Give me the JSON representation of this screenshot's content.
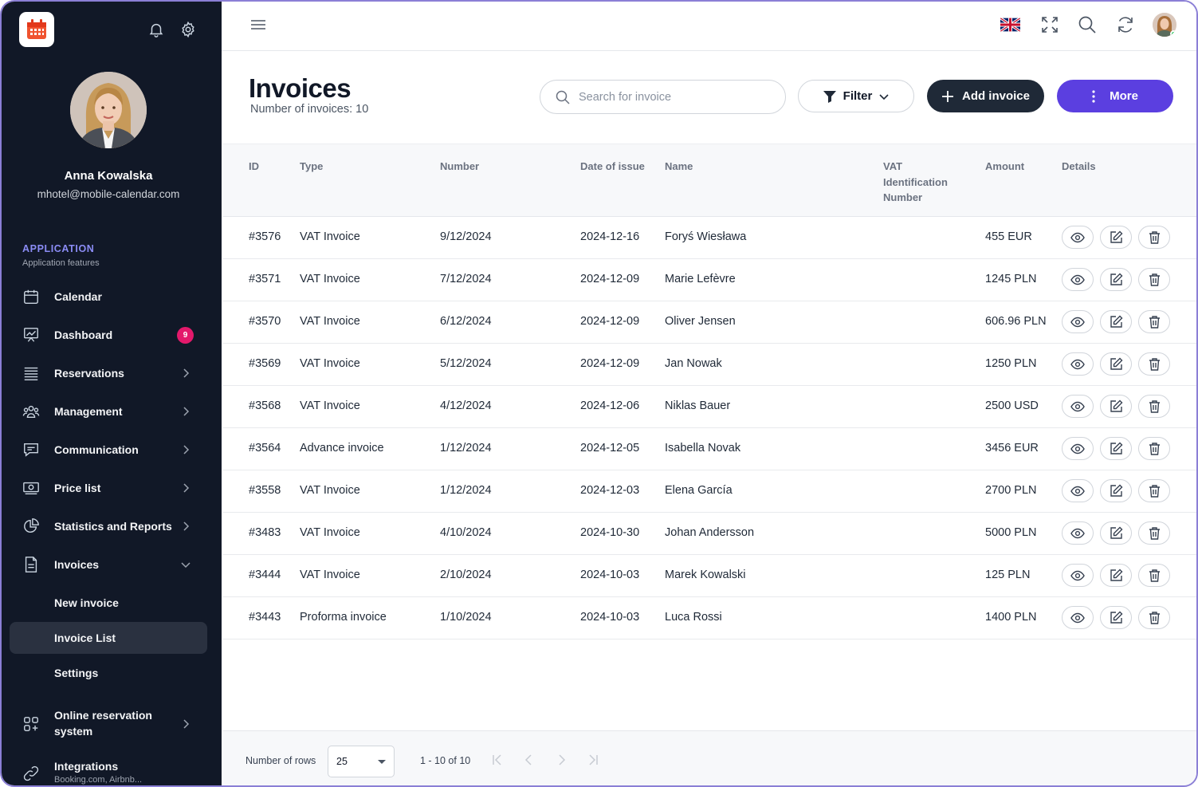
{
  "sidebar": {
    "user": {
      "name": "Anna Kowalska",
      "email": "mhotel@mobile-calendar.com"
    },
    "section": {
      "title": "APPLICATION",
      "subtitle": "Application features"
    },
    "items": [
      {
        "label": "Calendar",
        "icon": "calendar-icon"
      },
      {
        "label": "Dashboard",
        "icon": "chart-board-icon",
        "badge": "9"
      },
      {
        "label": "Reservations",
        "icon": "list-icon"
      },
      {
        "label": "Management",
        "icon": "users-icon"
      },
      {
        "label": "Communication",
        "icon": "chat-icon"
      },
      {
        "label": "Price list",
        "icon": "money-icon"
      },
      {
        "label": "Statistics and Reports",
        "icon": "pie-chart-icon"
      },
      {
        "label": "Invoices",
        "icon": "document-icon"
      }
    ],
    "subitems": [
      {
        "label": "New invoice"
      },
      {
        "label": "Invoice List"
      },
      {
        "label": "Settings"
      }
    ],
    "online": {
      "label_line1": "Online reservation",
      "label_line2": "system"
    },
    "integrations": {
      "label": "Integrations",
      "sublabel": "Booking.com, Airbnb..."
    }
  },
  "header": {
    "title": "Invoices",
    "count_label": "Number of invoices: 10",
    "search_placeholder": "Search for invoice",
    "filter_label": "Filter",
    "add_label": "Add invoice",
    "more_label": "More"
  },
  "table": {
    "columns": {
      "id": "ID",
      "type": "Type",
      "number": "Number",
      "date": "Date of issue",
      "name": "Name",
      "vat_line1": "VAT",
      "vat_line2": "Identification",
      "vat_line3": "Number",
      "amount": "Amount",
      "details": "Details"
    },
    "rows": [
      {
        "id": "#3576",
        "type": "VAT Invoice",
        "number": "9/12/2024",
        "date": "2024-12-16",
        "name": "Foryś Wiesława",
        "vat": "",
        "amount": "455 EUR"
      },
      {
        "id": "#3571",
        "type": "VAT Invoice",
        "number": "7/12/2024",
        "date": "2024-12-09",
        "name": "Marie Lefèvre",
        "vat": "",
        "amount": "1245 PLN"
      },
      {
        "id": "#3570",
        "type": "VAT Invoice",
        "number": "6/12/2024",
        "date": "2024-12-09",
        "name": "Oliver Jensen",
        "vat": "",
        "amount": "606.96 PLN"
      },
      {
        "id": "#3569",
        "type": "VAT Invoice",
        "number": "5/12/2024",
        "date": "2024-12-09",
        "name": "Jan Nowak",
        "vat": "",
        "amount": "1250 PLN"
      },
      {
        "id": "#3568",
        "type": "VAT Invoice",
        "number": "4/12/2024",
        "date": "2024-12-06",
        "name": "Niklas Bauer",
        "vat": "",
        "amount": "2500 USD"
      },
      {
        "id": "#3564",
        "type": "Advance invoice",
        "number": "1/12/2024",
        "date": "2024-12-05",
        "name": "Isabella Novak",
        "vat": "",
        "amount": "3456 EUR"
      },
      {
        "id": "#3558",
        "type": "VAT Invoice",
        "number": "1/12/2024",
        "date": "2024-12-03",
        "name": "Elena García",
        "vat": "",
        "amount": "2700 PLN"
      },
      {
        "id": "#3483",
        "type": "VAT Invoice",
        "number": "4/10/2024",
        "date": "2024-10-30",
        "name": "Johan Andersson",
        "vat": "",
        "amount": "5000 PLN"
      },
      {
        "id": "#3444",
        "type": "VAT Invoice",
        "number": "2/10/2024",
        "date": "2024-10-03",
        "name": "Marek Kowalski",
        "vat": "",
        "amount": "125 PLN"
      },
      {
        "id": "#3443",
        "type": "Proforma invoice",
        "number": "1/10/2024",
        "date": "2024-10-03",
        "name": "Luca Rossi",
        "vat": "",
        "amount": "1400 PLN"
      }
    ]
  },
  "footer": {
    "rows_label": "Number of rows",
    "rows_value": "25",
    "range_label": "1 - 10 of 10"
  },
  "colors": {
    "sidebar_bg": "#111827",
    "accent_purple": "#5b3fe0",
    "section_title": "#8b8cf5",
    "badge": "#e3196b",
    "dark_button": "#1f2937"
  }
}
